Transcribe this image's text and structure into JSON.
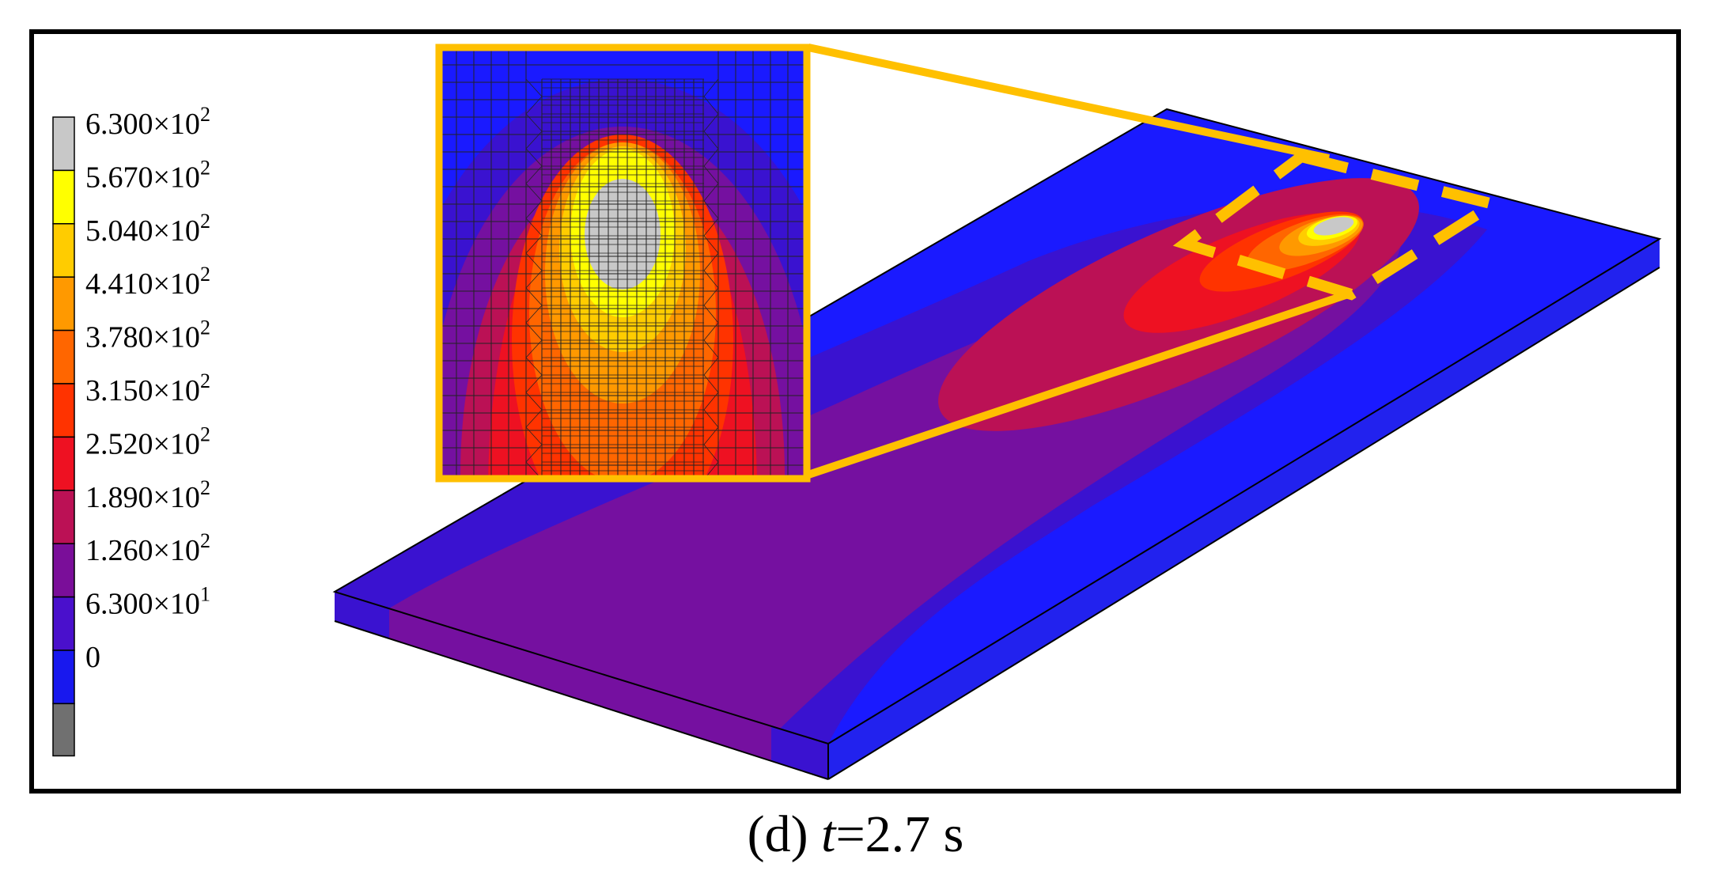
{
  "legend": {
    "levels": [
      {
        "mantissa": "6.300",
        "times": "×",
        "base": "10",
        "exp": "2",
        "color": "#C8C8C8"
      },
      {
        "mantissa": "5.670",
        "times": "×",
        "base": "10",
        "exp": "2",
        "color": "#FFFF00"
      },
      {
        "mantissa": "5.040",
        "times": "×",
        "base": "10",
        "exp": "2",
        "color": "#FFCC00"
      },
      {
        "mantissa": "4.410",
        "times": "×",
        "base": "10",
        "exp": "2",
        "color": "#FF9900"
      },
      {
        "mantissa": "3.780",
        "times": "×",
        "base": "10",
        "exp": "2",
        "color": "#FF6600"
      },
      {
        "mantissa": "3.150",
        "times": "×",
        "base": "10",
        "exp": "2",
        "color": "#FF3300"
      },
      {
        "mantissa": "2.520",
        "times": "×",
        "base": "10",
        "exp": "2",
        "color": "#EE1122"
      },
      {
        "mantissa": "1.890",
        "times": "×",
        "base": "10",
        "exp": "2",
        "color": "#BB1155"
      },
      {
        "mantissa": "1.260",
        "times": "×",
        "base": "10",
        "exp": "2",
        "color": "#7A0E99"
      },
      {
        "mantissa": "6.300",
        "times": "×",
        "base": "10",
        "exp": "1",
        "color": "#4A10CC"
      },
      {
        "mantissa": "0",
        "times": "",
        "base": "",
        "exp": "",
        "color": "#1818EE"
      }
    ],
    "bottom_swatch_color": "#707070"
  },
  "colors": {
    "frame": "#000000",
    "highlight": "#FFC000",
    "cold": "#1A1AFF",
    "mesh_line": "#222222"
  },
  "caption": {
    "prefix": "(d) ",
    "variable": "t",
    "suffix": "=2.7 s"
  }
}
